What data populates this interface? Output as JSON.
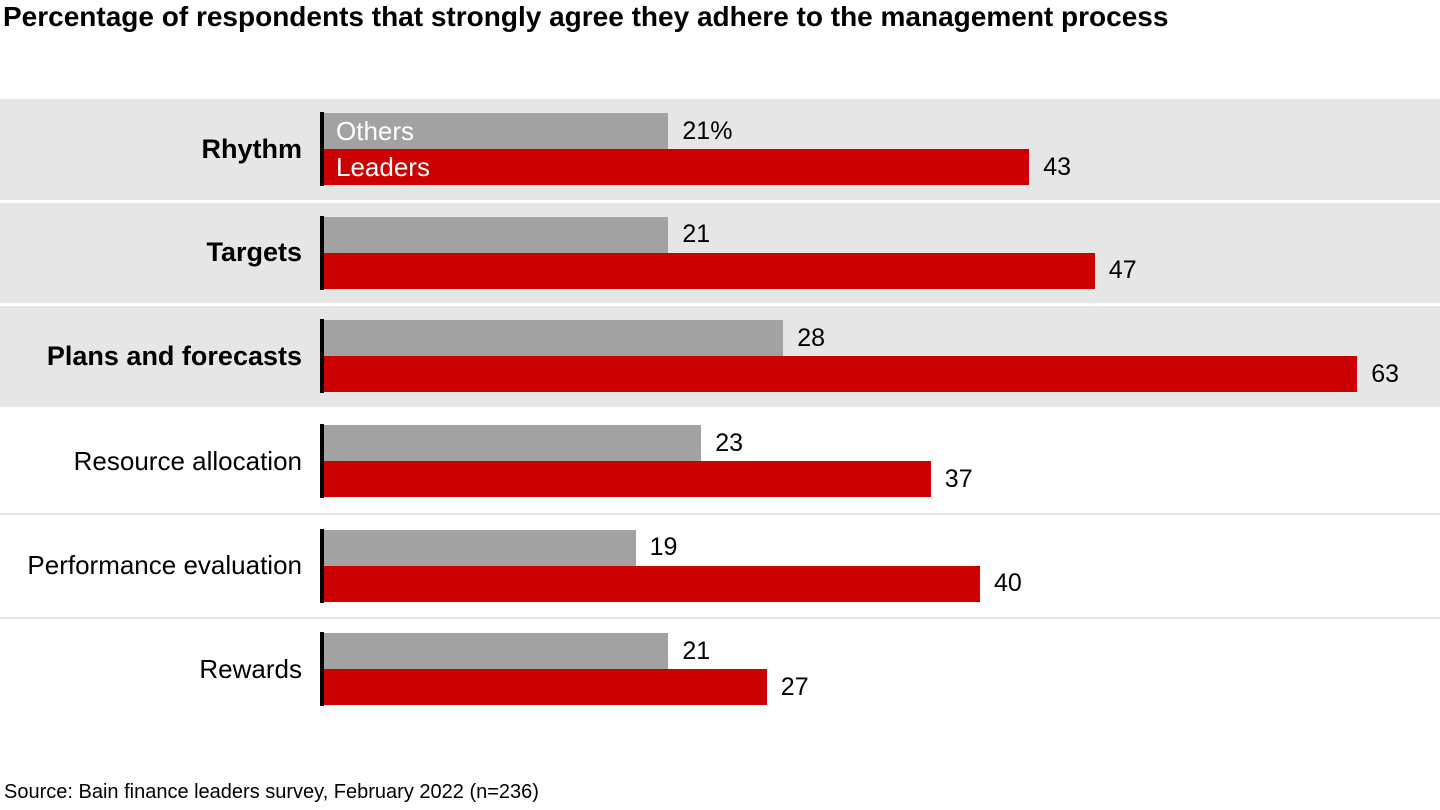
{
  "title": "Percentage of respondents that strongly agree they adhere to the management process",
  "source_note": "Source: Bain finance leaders survey, February 2022 (n=236)",
  "colors": {
    "others_bar": "#a2a2a2",
    "leaders_bar": "#cc0000",
    "row_band": "#e6e6e6",
    "axis": "#000000",
    "title_text": "#000000"
  },
  "chart_data": {
    "type": "bar",
    "orientation": "horizontal",
    "title": "Percentage of respondents that strongly agree they adhere to the management process",
    "categories": [
      "Rhythm",
      "Targets",
      "Plans and forecasts",
      "Resource allocation",
      "Performance evaluation",
      "Rewards"
    ],
    "series": [
      {
        "name": "Others",
        "color": "#a2a2a2",
        "values": [
          21,
          21,
          28,
          23,
          19,
          21
        ],
        "labels": [
          "21%",
          "21",
          "28",
          "23",
          "19",
          "21"
        ]
      },
      {
        "name": "Leaders",
        "color": "#cc0000",
        "values": [
          43,
          47,
          63,
          37,
          40,
          27
        ],
        "labels": [
          "43",
          "47",
          "63",
          "37",
          "40",
          "27"
        ]
      }
    ],
    "emphasized": [
      true,
      true,
      true,
      false,
      false,
      false
    ],
    "legend_position": "inside-first-row-bars",
    "xlim": [
      0,
      68
    ],
    "grid": false,
    "value_labels_shown": true
  }
}
